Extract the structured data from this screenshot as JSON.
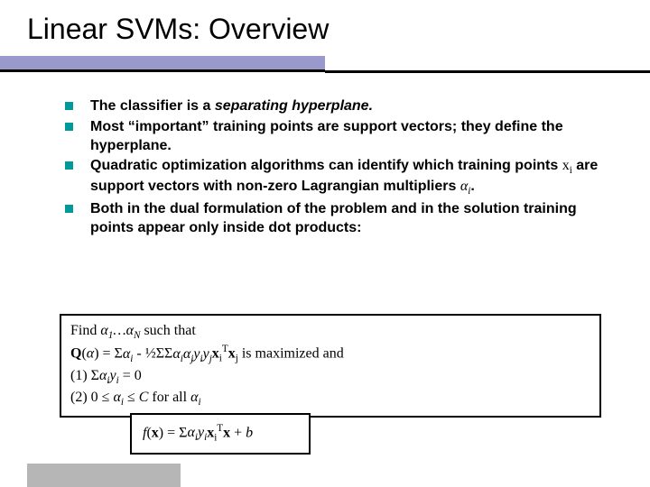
{
  "title": "Linear SVMs:  Overview",
  "colors": {
    "title_bar": "#9999cc",
    "bullet": "#009999",
    "footer_bar": "#b6b6b6",
    "border": "#000000",
    "background": "#ffffff"
  },
  "bullets": [
    {
      "html": "The classifier is a <span class='em'>separating hyperplane.</span>"
    },
    {
      "html": "Most “important” training points are support vectors; they define the hyperplane."
    },
    {
      "html": "Quadratic optimization algorithms can identify which training points <span class='serif'>x</span><span class='sub serif'>i</span> are support vectors with non-zero Lagrangian multipliers <span class='em serif'>α</span><span class='sub em serif'>i</span>."
    },
    {
      "html": "Both in the dual formulation of the problem and in the solution training points appear only inside dot products:"
    }
  ],
  "box1": {
    "lines": [
      "Find <span class='em'>α<span class='sub'>1</span>…α<span class='sub'>N</span></span> such that",
      "<b>Q</b>(<span class='em'>α</span>) = Σ<span class='em'>α<span class='sub'>i</span></span> - ½ΣΣ<span class='em'>α<span class='sub'>i</span>α<span class='sub'>j</span>y<span class='sub'>i</span>y<span class='sub'>j</span></span><b>x</b><span class='sub'>i</span><span class='sup'>T</span><b>x</b><span class='sub'>j</span> is maximized and",
      "(1)  Σ<span class='em'>α<span class='sub'>i</span>y<span class='sub'>i</span></span> = 0",
      "(2)  0 ≤ <span class='em'>α<span class='sub'>i</span></span> ≤ <span class='em'>C</span> for all <span class='em'>α<span class='sub'>i</span></span>"
    ]
  },
  "box2": {
    "line": "<span class='em'>f</span>(<b>x</b>) = Σ<span class='em'>α<span class='sub'>i</span>y<span class='sub'>i</span></span><b>x</b><span class='sub'>i</span><span class='sup'>T</span><b>x</b> + <span class='em'>b</span>"
  }
}
